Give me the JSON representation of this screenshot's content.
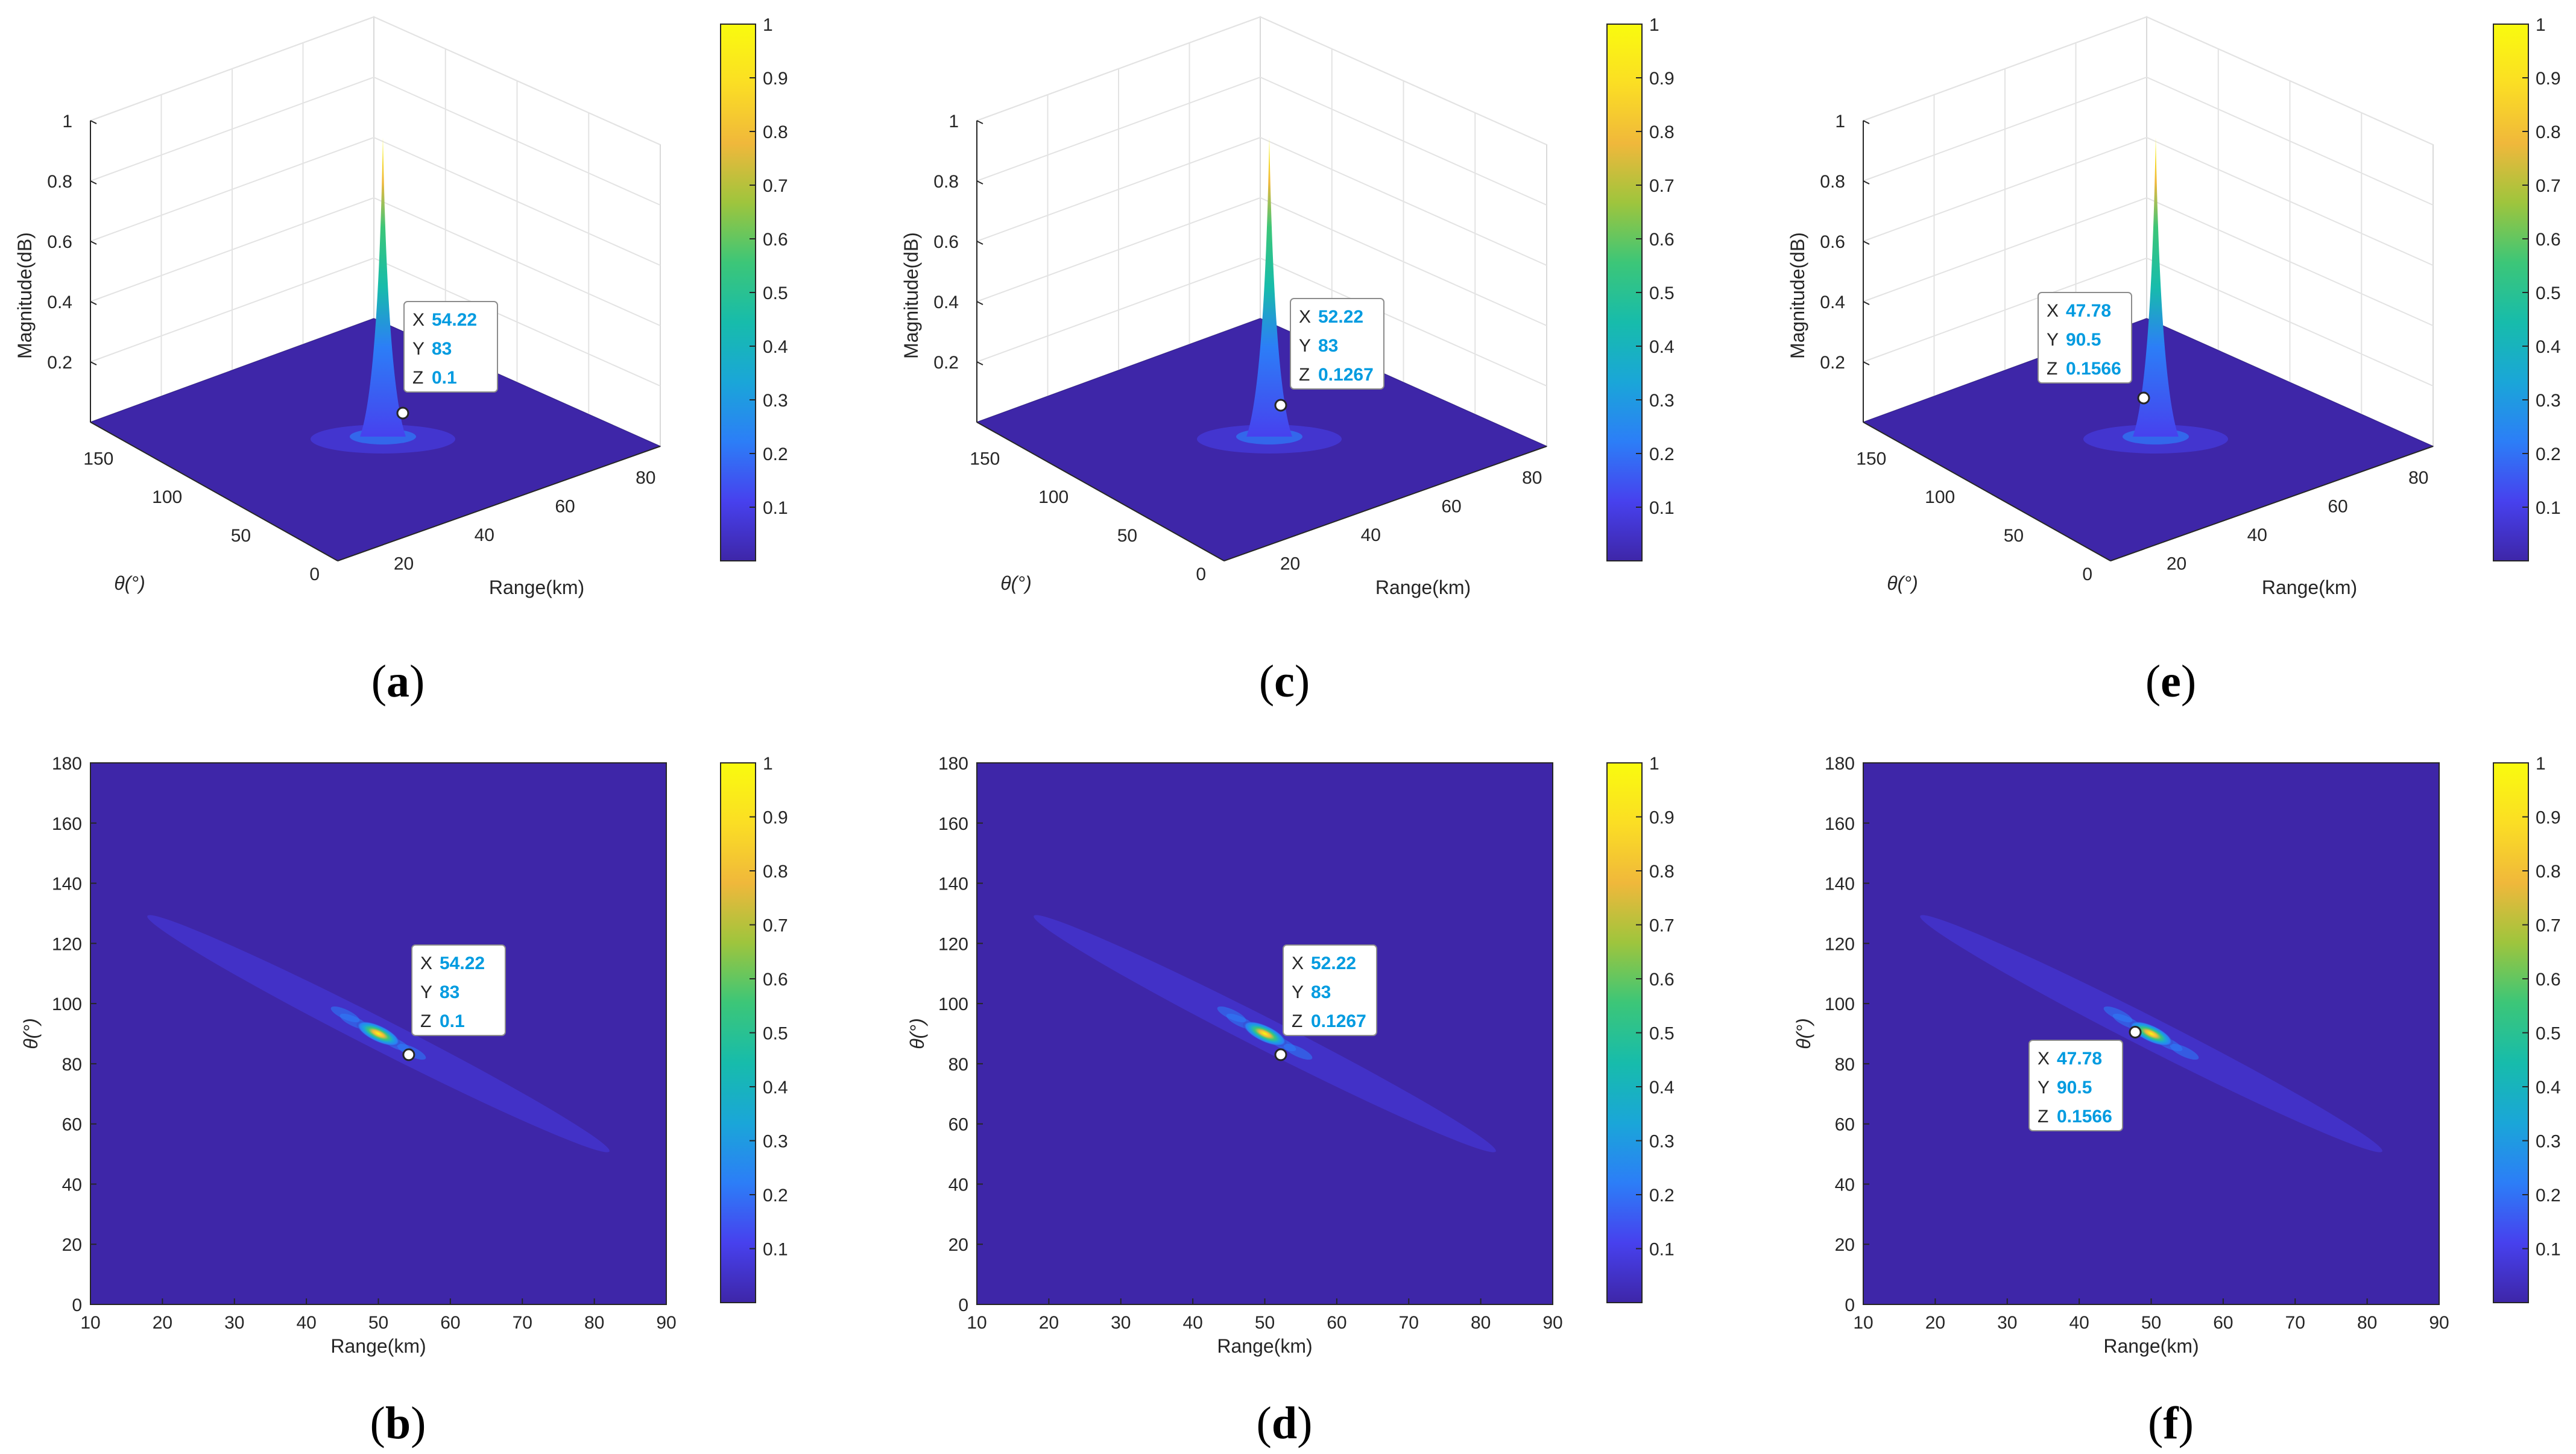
{
  "figure": {
    "colormap": [
      "#3e26a8",
      "#4741ee",
      "#2c7ef7",
      "#1aa6d8",
      "#17bcab",
      "#3cc678",
      "#9ec53d",
      "#f0b83b",
      "#fbde24",
      "#f9fb0e"
    ]
  },
  "chart_data": [
    {
      "panel": "a",
      "type": "surface3d",
      "caption": [
        "(",
        "a",
        ")"
      ],
      "zlabel": "Magnitude(dB)",
      "xlabel": "Range(km)",
      "ylabel": "θ(°)",
      "z_ticks": [
        "0.2",
        "0.4",
        "0.6",
        "0.8",
        "1"
      ],
      "x_ticks": [
        "20",
        "40",
        "60",
        "80"
      ],
      "y_ticks": [
        "0",
        "50",
        "100",
        "150"
      ],
      "colorbar_ticks": [
        "0.1",
        "0.2",
        "0.3",
        "0.4",
        "0.5",
        "0.6",
        "0.7",
        "0.8",
        "0.9",
        "1"
      ],
      "peak": {
        "range_km": 50,
        "theta_deg": 90,
        "magnitude": 1
      },
      "datatip": {
        "x_key": "X",
        "x_val": "54.22",
        "y_key": "Y",
        "y_val": "83",
        "z_key": "Z",
        "z_val": "0.1"
      }
    },
    {
      "panel": "b",
      "type": "heatmap",
      "caption": [
        "(",
        "b",
        ")"
      ],
      "xlabel": "Range(km)",
      "ylabel": "θ(°)",
      "x_ticks": [
        "10",
        "20",
        "30",
        "40",
        "50",
        "60",
        "70",
        "80",
        "90"
      ],
      "y_ticks": [
        "0",
        "20",
        "40",
        "60",
        "80",
        "100",
        "120",
        "140",
        "160",
        "180"
      ],
      "xlim": [
        10,
        90
      ],
      "ylim": [
        0,
        180
      ],
      "colorbar_ticks": [
        "0.1",
        "0.2",
        "0.3",
        "0.4",
        "0.5",
        "0.6",
        "0.7",
        "0.8",
        "0.9",
        "1"
      ],
      "peak": {
        "range_km": 50,
        "theta_deg": 90,
        "magnitude": 1
      },
      "datatip": {
        "x_key": "X",
        "x_val": "54.22",
        "y_key": "Y",
        "y_val": "83",
        "z_key": "Z",
        "z_val": "0.1"
      }
    },
    {
      "panel": "c",
      "type": "surface3d",
      "caption": [
        "(",
        "c",
        ")"
      ],
      "zlabel": "Magnitude(dB)",
      "xlabel": "Range(km)",
      "ylabel": "θ(°)",
      "z_ticks": [
        "0.2",
        "0.4",
        "0.6",
        "0.8",
        "1"
      ],
      "x_ticks": [
        "20",
        "40",
        "60",
        "80"
      ],
      "y_ticks": [
        "0",
        "50",
        "100",
        "150"
      ],
      "colorbar_ticks": [
        "0.1",
        "0.2",
        "0.3",
        "0.4",
        "0.5",
        "0.6",
        "0.7",
        "0.8",
        "0.9",
        "1"
      ],
      "peak": {
        "range_km": 50,
        "theta_deg": 90,
        "magnitude": 1
      },
      "datatip": {
        "x_key": "X",
        "x_val": "52.22",
        "y_key": "Y",
        "y_val": "83",
        "z_key": "Z",
        "z_val": "0.1267"
      }
    },
    {
      "panel": "d",
      "type": "heatmap",
      "caption": [
        "(",
        "d",
        ")"
      ],
      "xlabel": "Range(km)",
      "ylabel": "θ(°)",
      "x_ticks": [
        "10",
        "20",
        "30",
        "40",
        "50",
        "60",
        "70",
        "80",
        "90"
      ],
      "y_ticks": [
        "0",
        "20",
        "40",
        "60",
        "80",
        "100",
        "120",
        "140",
        "160",
        "180"
      ],
      "xlim": [
        10,
        90
      ],
      "ylim": [
        0,
        180
      ],
      "colorbar_ticks": [
        "0.1",
        "0.2",
        "0.3",
        "0.4",
        "0.5",
        "0.6",
        "0.7",
        "0.8",
        "0.9",
        "1"
      ],
      "peak": {
        "range_km": 50,
        "theta_deg": 90,
        "magnitude": 1
      },
      "datatip": {
        "x_key": "X",
        "x_val": "52.22",
        "y_key": "Y",
        "y_val": "83",
        "z_key": "Z",
        "z_val": "0.1267"
      }
    },
    {
      "panel": "e",
      "type": "surface3d",
      "caption": [
        "(",
        "e",
        ")"
      ],
      "zlabel": "Magnitude(dB)",
      "xlabel": "Range(km)",
      "ylabel": "θ(°)",
      "z_ticks": [
        "0.2",
        "0.4",
        "0.6",
        "0.8",
        "1"
      ],
      "x_ticks": [
        "20",
        "40",
        "60",
        "80"
      ],
      "y_ticks": [
        "0",
        "50",
        "100",
        "150"
      ],
      "colorbar_ticks": [
        "0.1",
        "0.2",
        "0.3",
        "0.4",
        "0.5",
        "0.6",
        "0.7",
        "0.8",
        "0.9",
        "1"
      ],
      "peak": {
        "range_km": 50,
        "theta_deg": 90,
        "magnitude": 1
      },
      "datatip": {
        "x_key": "X",
        "x_val": "47.78",
        "y_key": "Y",
        "y_val": "90.5",
        "z_key": "Z",
        "z_val": "0.1566"
      }
    },
    {
      "panel": "f",
      "type": "heatmap",
      "caption": [
        "(",
        "f",
        ")"
      ],
      "xlabel": "Range(km)",
      "ylabel": "θ(°)",
      "x_ticks": [
        "10",
        "20",
        "30",
        "40",
        "50",
        "60",
        "70",
        "80",
        "90"
      ],
      "y_ticks": [
        "0",
        "20",
        "40",
        "60",
        "80",
        "100",
        "120",
        "140",
        "160",
        "180"
      ],
      "xlim": [
        10,
        90
      ],
      "ylim": [
        0,
        180
      ],
      "colorbar_ticks": [
        "0.1",
        "0.2",
        "0.3",
        "0.4",
        "0.5",
        "0.6",
        "0.7",
        "0.8",
        "0.9",
        "1"
      ],
      "peak": {
        "range_km": 50,
        "theta_deg": 90,
        "magnitude": 1
      },
      "datatip": {
        "x_key": "X",
        "x_val": "47.78",
        "y_key": "Y",
        "y_val": "90.5",
        "z_key": "Z",
        "z_val": "0.1566"
      }
    }
  ]
}
